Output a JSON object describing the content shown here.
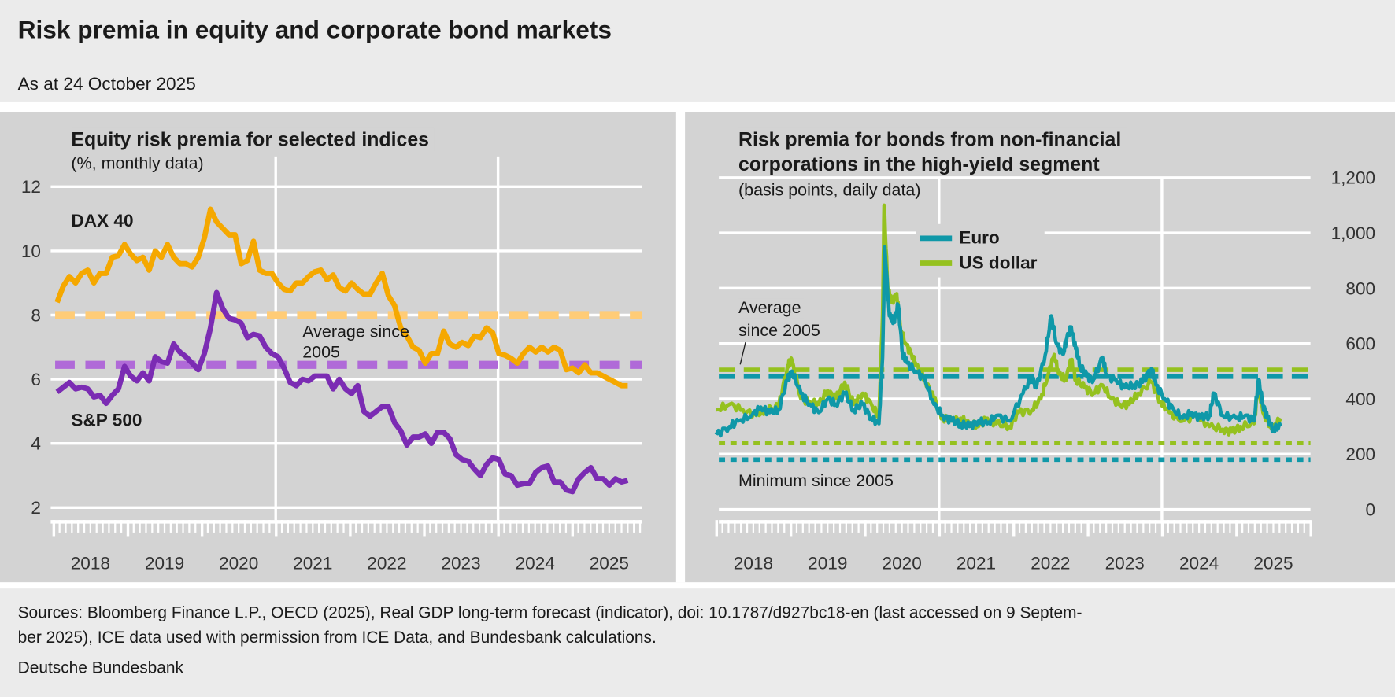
{
  "header": {
    "title": "Risk premia in equity and corporate bond markets",
    "subtitle": "As at 24 October 2025"
  },
  "footer": {
    "sources_line1": "Sources: Bloomberg Finance L.P., OECD (2025), Real GDP long-term forecast (indicator), doi: 10.1787/d927bc18-en (last accessed on 9 Septem-",
    "sources_line2": "ber 2025), ICE data used with permission from ICE Data, and Bundesbank calculations.",
    "publisher": "Deutsche Bundesbank"
  },
  "chart_data": [
    {
      "type": "line",
      "title": "Equity risk premia for selected indices",
      "subtitle": "(%, monthly data)",
      "ylabel": "%",
      "ylim": [
        2,
        12
      ],
      "yticks": [
        "2",
        "4",
        "6",
        "8",
        "10",
        "12"
      ],
      "ytick_values": [
        2,
        4,
        6,
        8,
        10,
        12
      ],
      "xlim": [
        2018,
        2026
      ],
      "xticks": [
        "2018",
        "2019",
        "2020",
        "2021",
        "2022",
        "2023",
        "2024",
        "2025"
      ],
      "grid": true,
      "annotation": "Average since 2005",
      "series": [
        {
          "name": "DAX 40",
          "color": "#f5a800",
          "start_year": 2018.05,
          "end_year": 2025.75,
          "values": [
            8.4,
            8.9,
            9.2,
            9.0,
            9.3,
            9.4,
            9.0,
            9.3,
            9.3,
            9.8,
            9.85,
            10.2,
            9.9,
            9.7,
            9.8,
            9.4,
            10.0,
            9.8,
            10.2,
            9.8,
            9.6,
            9.6,
            9.5,
            9.8,
            10.4,
            11.3,
            10.9,
            10.7,
            10.5,
            10.5,
            9.6,
            9.7,
            10.3,
            9.4,
            9.3,
            9.3,
            9.0,
            8.8,
            8.75,
            9.0,
            9.0,
            9.2,
            9.35,
            9.4,
            9.1,
            9.25,
            8.85,
            8.75,
            9.0,
            8.8,
            8.65,
            8.65,
            9.0,
            9.3,
            8.6,
            8.3,
            7.6,
            7.35,
            7.0,
            6.9,
            6.5,
            6.8,
            6.8,
            7.5,
            7.1,
            7.0,
            7.15,
            7.05,
            7.35,
            7.3,
            7.6,
            7.45,
            6.8,
            6.75,
            6.65,
            6.5,
            6.8,
            7.0,
            6.85,
            7.0,
            6.85,
            7.0,
            6.9,
            6.3,
            6.35,
            6.2,
            6.45,
            6.2,
            6.2,
            6.1,
            6.0,
            5.9,
            5.8,
            5.8
          ],
          "average_since_2005": 8.0,
          "average_color": "#ffcc77"
        },
        {
          "name": "S&P 500",
          "color": "#7b2cb3",
          "start_year": 2018.05,
          "end_year": 2025.75,
          "values": [
            5.6,
            5.75,
            5.9,
            5.7,
            5.75,
            5.7,
            5.45,
            5.5,
            5.25,
            5.5,
            5.7,
            6.4,
            6.1,
            5.95,
            6.2,
            5.95,
            6.7,
            6.55,
            6.5,
            7.1,
            6.85,
            6.7,
            6.5,
            6.3,
            6.8,
            7.6,
            8.7,
            8.2,
            7.9,
            7.85,
            7.75,
            7.3,
            7.4,
            7.35,
            7.0,
            6.8,
            6.7,
            6.35,
            5.9,
            5.8,
            6.0,
            5.95,
            6.1,
            6.1,
            6.1,
            5.7,
            6.0,
            5.7,
            5.55,
            5.8,
            5.0,
            4.85,
            5.0,
            5.15,
            5.15,
            4.65,
            4.4,
            3.95,
            4.2,
            4.2,
            4.3,
            4.0,
            4.35,
            4.35,
            4.15,
            3.65,
            3.5,
            3.45,
            3.2,
            3.0,
            3.35,
            3.55,
            3.5,
            3.05,
            3.0,
            2.7,
            2.75,
            2.75,
            3.1,
            3.25,
            3.3,
            2.8,
            2.8,
            2.55,
            2.5,
            2.9,
            3.1,
            3.25,
            2.9,
            2.9,
            2.7,
            2.9,
            2.8,
            2.85
          ],
          "average_since_2005": 6.45,
          "average_color": "#b06ad8"
        }
      ]
    },
    {
      "type": "line",
      "title_line1": "Risk premia for bonds from non-financial",
      "title_line2": "corporations in the high-yield segment",
      "subtitle": "(basis points, daily data)",
      "ylabel": "basis points",
      "ylim": [
        0,
        1200
      ],
      "yticks": [
        "0",
        "200",
        "400",
        "600",
        "800",
        "1,000",
        "1,200"
      ],
      "ytick_values": [
        0,
        200,
        400,
        600,
        800,
        1000,
        1200
      ],
      "xlim": [
        2018,
        2026
      ],
      "xticks": [
        "2018",
        "2019",
        "2020",
        "2021",
        "2022",
        "2023",
        "2024",
        "2025"
      ],
      "grid": true,
      "legend": [
        "Euro",
        "US dollar"
      ],
      "legend_position": "top-center",
      "annotation_average": "Average",
      "annotation_average2": "since 2005",
      "annotation_minimum": "Minimum since 2005",
      "series": [
        {
          "name": "Euro",
          "color": "#0f98a8",
          "average_since_2005": 480,
          "minimum_since_2005": 180,
          "points": [
            [
              2018.0,
              270
            ],
            [
              2018.18,
              300
            ],
            [
              2018.3,
              320
            ],
            [
              2018.48,
              340
            ],
            [
              2018.6,
              370
            ],
            [
              2018.72,
              350
            ],
            [
              2018.84,
              360
            ],
            [
              2018.96,
              470
            ],
            [
              2019.02,
              500
            ],
            [
              2019.14,
              420
            ],
            [
              2019.26,
              380
            ],
            [
              2019.38,
              350
            ],
            [
              2019.5,
              400
            ],
            [
              2019.61,
              380
            ],
            [
              2019.73,
              420
            ],
            [
              2019.85,
              360
            ],
            [
              2019.97,
              380
            ],
            [
              2020.09,
              330
            ],
            [
              2020.19,
              310
            ],
            [
              2020.24,
              550
            ],
            [
              2020.27,
              950
            ],
            [
              2020.33,
              700
            ],
            [
              2020.39,
              680
            ],
            [
              2020.45,
              740
            ],
            [
              2020.51,
              560
            ],
            [
              2020.57,
              530
            ],
            [
              2020.69,
              500
            ],
            [
              2020.81,
              470
            ],
            [
              2020.93,
              380
            ],
            [
              2021.05,
              340
            ],
            [
              2021.17,
              320
            ],
            [
              2021.29,
              310
            ],
            [
              2021.41,
              300
            ],
            [
              2021.53,
              320
            ],
            [
              2021.65,
              310
            ],
            [
              2021.77,
              340
            ],
            [
              2021.95,
              320
            ],
            [
              2022.13,
              420
            ],
            [
              2022.25,
              480
            ],
            [
              2022.31,
              440
            ],
            [
              2022.43,
              560
            ],
            [
              2022.51,
              700
            ],
            [
              2022.58,
              600
            ],
            [
              2022.67,
              560
            ],
            [
              2022.72,
              620
            ],
            [
              2022.78,
              660
            ],
            [
              2022.84,
              580
            ],
            [
              2022.9,
              520
            ],
            [
              2022.99,
              480
            ],
            [
              2023.08,
              470
            ],
            [
              2023.2,
              550
            ],
            [
              2023.26,
              480
            ],
            [
              2023.38,
              470
            ],
            [
              2023.5,
              440
            ],
            [
              2023.62,
              450
            ],
            [
              2023.74,
              460
            ],
            [
              2023.86,
              510
            ],
            [
              2023.92,
              450
            ],
            [
              2024.04,
              400
            ],
            [
              2024.16,
              360
            ],
            [
              2024.28,
              330
            ],
            [
              2024.4,
              350
            ],
            [
              2024.52,
              330
            ],
            [
              2024.64,
              340
            ],
            [
              2024.7,
              420
            ],
            [
              2024.82,
              340
            ],
            [
              2025.0,
              330
            ],
            [
              2025.12,
              340
            ],
            [
              2025.24,
              320
            ],
            [
              2025.3,
              470
            ],
            [
              2025.36,
              380
            ],
            [
              2025.42,
              330
            ],
            [
              2025.5,
              290
            ],
            [
              2025.6,
              300
            ]
          ]
        },
        {
          "name": "US dollar",
          "color": "#95c11f",
          "average_since_2005": 505,
          "minimum_since_2005": 240,
          "points": [
            [
              2018.0,
              360
            ],
            [
              2018.18,
              380
            ],
            [
              2018.36,
              360
            ],
            [
              2018.54,
              340
            ],
            [
              2018.66,
              360
            ],
            [
              2018.84,
              370
            ],
            [
              2018.96,
              520
            ],
            [
              2019.02,
              540
            ],
            [
              2019.14,
              400
            ],
            [
              2019.26,
              390
            ],
            [
              2019.38,
              380
            ],
            [
              2019.5,
              430
            ],
            [
              2019.61,
              400
            ],
            [
              2019.73,
              460
            ],
            [
              2019.85,
              380
            ],
            [
              2019.97,
              420
            ],
            [
              2020.09,
              380
            ],
            [
              2020.19,
              330
            ],
            [
              2020.24,
              700
            ],
            [
              2020.26,
              1100
            ],
            [
              2020.31,
              800
            ],
            [
              2020.36,
              750
            ],
            [
              2020.43,
              780
            ],
            [
              2020.48,
              650
            ],
            [
              2020.55,
              600
            ],
            [
              2020.63,
              560
            ],
            [
              2020.69,
              520
            ],
            [
              2020.81,
              470
            ],
            [
              2020.93,
              400
            ],
            [
              2021.05,
              330
            ],
            [
              2021.17,
              320
            ],
            [
              2021.29,
              330
            ],
            [
              2021.41,
              310
            ],
            [
              2021.53,
              300
            ],
            [
              2021.65,
              330
            ],
            [
              2021.77,
              310
            ],
            [
              2021.95,
              300
            ],
            [
              2022.07,
              350
            ],
            [
              2022.25,
              360
            ],
            [
              2022.37,
              400
            ],
            [
              2022.46,
              480
            ],
            [
              2022.55,
              560
            ],
            [
              2022.61,
              490
            ],
            [
              2022.7,
              470
            ],
            [
              2022.78,
              540
            ],
            [
              2022.84,
              470
            ],
            [
              2022.96,
              440
            ],
            [
              2023.08,
              420
            ],
            [
              2023.2,
              450
            ],
            [
              2023.32,
              400
            ],
            [
              2023.44,
              380
            ],
            [
              2023.56,
              380
            ],
            [
              2023.68,
              420
            ],
            [
              2023.86,
              460
            ],
            [
              2023.98,
              390
            ],
            [
              2024.1,
              350
            ],
            [
              2024.28,
              320
            ],
            [
              2024.46,
              340
            ],
            [
              2024.64,
              300
            ],
            [
              2024.82,
              290
            ],
            [
              2024.94,
              280
            ],
            [
              2025.06,
              300
            ],
            [
              2025.24,
              310
            ],
            [
              2025.3,
              450
            ],
            [
              2025.36,
              350
            ],
            [
              2025.48,
              290
            ],
            [
              2025.6,
              330
            ]
          ]
        }
      ]
    }
  ]
}
